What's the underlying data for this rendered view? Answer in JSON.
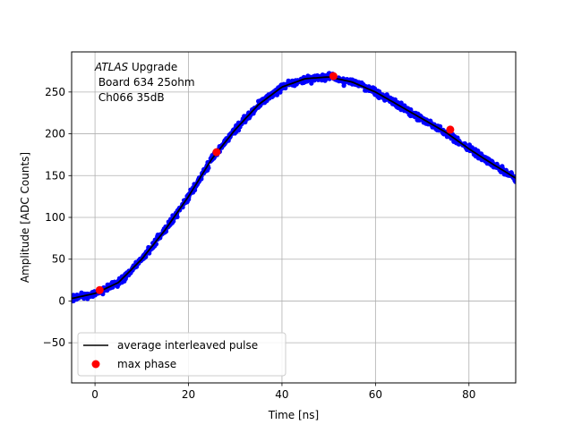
{
  "chart_data": {
    "type": "scatter",
    "xlabel": "Time [ns]",
    "ylabel": "Amplitude [ADC Counts]",
    "xlim": [
      -5,
      90
    ],
    "ylim": [
      -98,
      298
    ],
    "xticks": [
      0,
      20,
      40,
      60,
      80
    ],
    "yticks": [
      -50,
      0,
      50,
      100,
      150,
      200,
      250
    ],
    "grid": true,
    "legend_placement": "lower-left",
    "annotation": {
      "italic": "ATLAS",
      "line1_rest": " Upgrade",
      "line2": " Board 634 25ohm",
      "line3": " Ch066 35dB"
    },
    "colors": {
      "scatter": "#0000ff",
      "average": "#000000",
      "max_phase": "#ff0000",
      "grid": "#b0b0b0"
    },
    "series": [
      {
        "name": "average interleaved pulse",
        "kind": "line",
        "x": [
          -5,
          0,
          5,
          10,
          15,
          20,
          25,
          30,
          35,
          40,
          45,
          50,
          55,
          60,
          65,
          70,
          75,
          80,
          85,
          90
        ],
        "y": [
          3,
          9,
          22,
          50,
          85,
          125,
          170,
          205,
          235,
          256,
          266,
          268,
          262,
          250,
          234,
          218,
          202,
          182,
          164,
          147
        ]
      },
      {
        "name": "max phase",
        "kind": "points",
        "x": [
          1,
          26,
          51,
          76
        ],
        "y": [
          13,
          178,
          269,
          205
        ]
      }
    ]
  }
}
